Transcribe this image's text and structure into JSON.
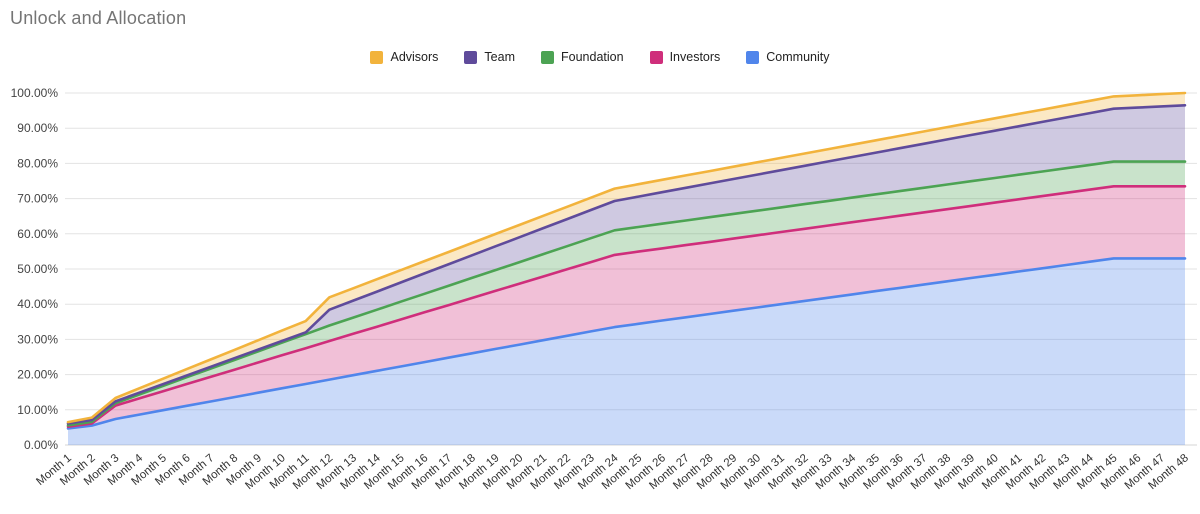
{
  "title": "Unlock and Allocation",
  "chart_data": {
    "type": "area",
    "stacked": true,
    "title": "Unlock and Allocation",
    "xlabel": "",
    "ylabel": "",
    "ylim": [
      0,
      100
    ],
    "grid": true,
    "legend_position": "top-center",
    "legend_order": [
      "Advisors",
      "Team",
      "Foundation",
      "Investors",
      "Community"
    ],
    "y_ticks": [
      "100.00%",
      "90.00%",
      "80.00%",
      "70.00%",
      "60.00%",
      "50.00%",
      "40.00%",
      "30.00%",
      "20.00%",
      "10.00%",
      "0.00%"
    ],
    "y_tick_values": [
      100,
      90,
      80,
      70,
      60,
      50,
      40,
      30,
      20,
      10,
      0
    ],
    "categories": [
      "Month 1",
      "Month 2",
      "Month 3",
      "Month 4",
      "Month 5",
      "Month 6",
      "Month 7",
      "Month 8",
      "Month 9",
      "Month 10",
      "Month 11",
      "Month 12",
      "Month 13",
      "Month 14",
      "Month 15",
      "Month 16",
      "Month 17",
      "Month 18",
      "Month 19",
      "Month 20",
      "Month 21",
      "Month 22",
      "Month 23",
      "Month 24",
      "Month 25",
      "Month 26",
      "Month 27",
      "Month 28",
      "Month 29",
      "Month 30",
      "Month 31",
      "Month 32",
      "Month 33",
      "Month 34",
      "Month 35",
      "Month 36",
      "Month 37",
      "Month 38",
      "Month 39",
      "Month 40",
      "Month 41",
      "Month 42",
      "Month 43",
      "Month 44",
      "Month 45",
      "Month 46",
      "Month 47",
      "Month 48"
    ],
    "series": [
      {
        "name": "Community",
        "color": "#5085EB",
        "fill_opacity": 0.3,
        "total_allocation_pct": 53,
        "values": [
          4.7,
          5.5,
          7.4,
          8.64,
          9.89,
          11.13,
          12.37,
          13.61,
          14.86,
          16.1,
          17.34,
          18.59,
          19.83,
          21.07,
          22.31,
          23.56,
          24.8,
          26.04,
          27.29,
          28.53,
          29.77,
          31.01,
          32.26,
          33.5,
          34.43,
          35.36,
          36.29,
          37.21,
          38.14,
          39.07,
          40.0,
          40.93,
          41.86,
          42.79,
          43.71,
          44.64,
          45.57,
          46.5,
          47.43,
          48.36,
          49.29,
          50.21,
          51.14,
          52.07,
          53.0,
          53.0,
          53.0,
          53.0
        ]
      },
      {
        "name": "Investors",
        "color": "#CF2E7B",
        "fill_opacity": 0.3,
        "total_allocation_pct": 20.5,
        "values": [
          0.5,
          0.6,
          3.8,
          4.6,
          5.39,
          6.19,
          6.98,
          7.78,
          8.57,
          9.37,
          10.16,
          10.96,
          11.75,
          12.55,
          13.34,
          14.13,
          14.93,
          15.72,
          16.52,
          17.31,
          18.11,
          18.9,
          19.7,
          20.5,
          20.5,
          20.5,
          20.5,
          20.5,
          20.5,
          20.5,
          20.5,
          20.5,
          20.5,
          20.5,
          20.5,
          20.5,
          20.5,
          20.5,
          20.5,
          20.5,
          20.5,
          20.5,
          20.5,
          20.5,
          20.5,
          20.5,
          20.5,
          20.5
        ]
      },
      {
        "name": "Foundation",
        "color": "#4CA353",
        "fill_opacity": 0.3,
        "total_allocation_pct": 7,
        "values": [
          0.4,
          0.5,
          0.7,
          1.11,
          1.52,
          1.93,
          2.34,
          2.76,
          3.17,
          3.58,
          3.99,
          4.4,
          4.62,
          4.83,
          5.05,
          5.27,
          5.48,
          5.7,
          5.92,
          6.13,
          6.35,
          6.57,
          6.78,
          7.0,
          7.0,
          7.0,
          7.0,
          7.0,
          7.0,
          7.0,
          7.0,
          7.0,
          7.0,
          7.0,
          7.0,
          7.0,
          7.0,
          7.0,
          7.0,
          7.0,
          7.0,
          7.0,
          7.0,
          7.0,
          7.0,
          7.0,
          7.0,
          7.0
        ]
      },
      {
        "name": "Team",
        "color": "#5F4B9B",
        "fill_opacity": 0.3,
        "total_allocation_pct": 16,
        "values": [
          0.5,
          0.5,
          0.5,
          0.5,
          0.5,
          0.5,
          0.5,
          0.5,
          0.5,
          0.5,
          0.5,
          4.5,
          4.82,
          5.14,
          5.46,
          5.78,
          6.1,
          6.42,
          6.74,
          7.06,
          7.38,
          7.69,
          8.01,
          8.33,
          8.65,
          8.97,
          9.29,
          9.61,
          9.93,
          10.25,
          10.57,
          10.89,
          11.21,
          11.53,
          11.85,
          12.17,
          12.49,
          12.81,
          13.13,
          13.44,
          13.76,
          14.08,
          14.4,
          14.72,
          15.04,
          15.36,
          15.68,
          16.0
        ]
      },
      {
        "name": "Advisors",
        "color": "#F2B33C",
        "fill_opacity": 0.3,
        "total_allocation_pct": 3.5,
        "values": [
          0.4,
          0.68,
          0.96,
          1.25,
          1.53,
          1.81,
          2.09,
          2.37,
          2.65,
          2.94,
          3.22,
          3.5,
          3.5,
          3.5,
          3.5,
          3.5,
          3.5,
          3.5,
          3.5,
          3.5,
          3.5,
          3.5,
          3.5,
          3.5,
          3.5,
          3.5,
          3.5,
          3.5,
          3.5,
          3.5,
          3.5,
          3.5,
          3.5,
          3.5,
          3.5,
          3.5,
          3.5,
          3.5,
          3.5,
          3.5,
          3.5,
          3.5,
          3.5,
          3.5,
          3.5,
          3.5,
          3.5,
          3.5
        ]
      }
    ],
    "colors": {
      "grid_line": "#E3E3E3",
      "baseline": "#D6D6D6",
      "y_tick_text": "#444444",
      "x_tick_text": "#333333",
      "title_text": "#757575",
      "legend_text": "#222222",
      "background": "#FFFFFF"
    }
  }
}
